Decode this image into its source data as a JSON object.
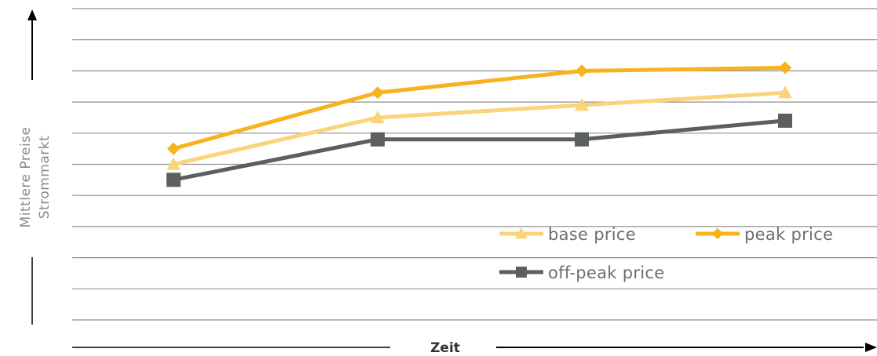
{
  "chart_data": {
    "type": "line",
    "xlabel": "Zeit",
    "ylabel_lines": [
      "Mittlere Preise",
      "Strommarkt"
    ],
    "categories": [
      "",
      "",
      "",
      ""
    ],
    "ylim": [
      0,
      10
    ],
    "grid": true,
    "legend": "bottom-right",
    "series": [
      {
        "name": "base price",
        "color": "#f9d47a",
        "marker": "triangle",
        "values": [
          5.0,
          6.5,
          6.9,
          7.3
        ]
      },
      {
        "name": "peak price",
        "color": "#f6b31e",
        "marker": "diamond",
        "values": [
          5.5,
          7.3,
          8.0,
          8.1
        ]
      },
      {
        "name": "off-peak price",
        "color": "#5b5f5f",
        "marker": "square",
        "values": [
          4.5,
          5.8,
          5.8,
          6.4
        ]
      }
    ]
  }
}
